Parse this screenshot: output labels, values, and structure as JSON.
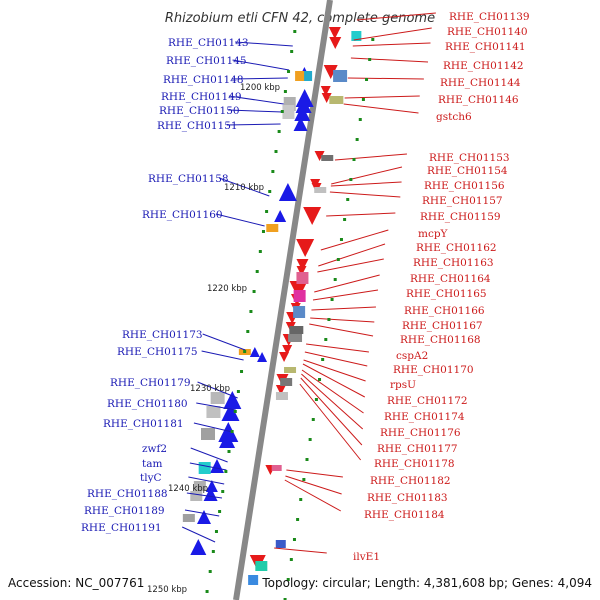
{
  "title": "Rhizobium etli CFN 42, complete genome",
  "accession": "Accession: NC_007761",
  "topology": "Topology: circular; Length: 4,381,608 bp; Genes: 4,094",
  "ticks": [
    "1200 kbp",
    "1210 kbp",
    "1220 kbp",
    "1230 kbp",
    "1240 kbp",
    "1250 kbp"
  ],
  "colors": {
    "left_label": "#1a1ab4",
    "right_label": "#cc1a1a",
    "left_gene": "#1a1ae6",
    "right_gene": "#e61a1a",
    "axis": "#888888",
    "tick": "#1a8a1a"
  },
  "left_labels": [
    "RHE_CH01143",
    "RHE_CH01145",
    "RHE_CH01148",
    "RHE_CH01149",
    "RHE_CH01150",
    "RHE_CH01151",
    "RHE_CH01158",
    "RHE_CH01160",
    "RHE_CH01173",
    "RHE_CH01175",
    "RHE_CH01179",
    "RHE_CH01180",
    "RHE_CH01181",
    "zwf2",
    "tam",
    "tlyC",
    "RHE_CH01188",
    "RHE_CH01189",
    "RHE_CH01191"
  ],
  "right_labels": [
    "RHE_CH01139",
    "RHE_CH01140",
    "RHE_CH01141",
    "RHE_CH01142",
    "RHE_CH01144",
    "RHE_CH01146",
    "gstch6",
    "RHE_CH01153",
    "RHE_CH01154",
    "RHE_CH01156",
    "RHE_CH01157",
    "RHE_CH01159",
    "mcpY",
    "RHE_CH01162",
    "RHE_CH01163",
    "RHE_CH01164",
    "RHE_CH01165",
    "RHE_CH01166",
    "RHE_CH01167",
    "RHE_CH01168",
    "cspA2",
    "RHE_CH01170",
    "rpsU",
    "RHE_CH01172",
    "RHE_CH01174",
    "RHE_CH01176",
    "RHE_CH01177",
    "RHE_CH01178",
    "RHE_CH01182",
    "RHE_CH01183",
    "RHE_CH01184",
    "ilvE1"
  ]
}
